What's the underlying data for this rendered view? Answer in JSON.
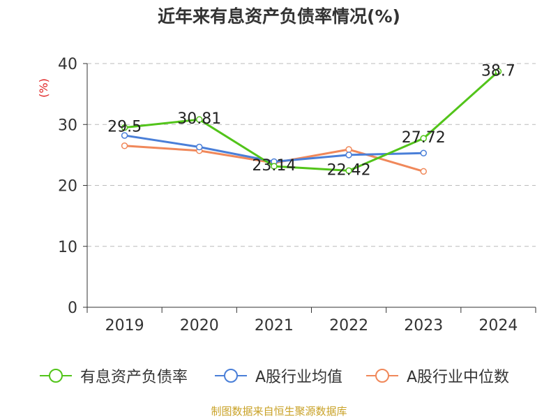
{
  "title": "近年来有息资产负债率情况(%)",
  "source": "制图数据来自恒生聚源数据库",
  "chart_data": {
    "type": "line",
    "title": "近年来有息资产负债率情况(%)",
    "ylabel": "(%)",
    "xlabel": "",
    "categories": [
      "2019",
      "2020",
      "2021",
      "2022",
      "2023",
      "2024"
    ],
    "ylim": [
      0,
      40
    ],
    "yticks": [
      0,
      10,
      20,
      30,
      40
    ],
    "grid": true,
    "legend_position": "bottom",
    "series": [
      {
        "name": "有息资产负债率",
        "color": "#52c41a",
        "values": [
          29.5,
          30.81,
          23.14,
          22.42,
          27.72,
          38.7
        ],
        "labels": [
          "29.5",
          "30.81",
          "23.14",
          "22.42",
          "27.72",
          "38.7"
        ]
      },
      {
        "name": "A股行业均值",
        "color": "#4a7fd8",
        "values": [
          28.2,
          26.3,
          23.9,
          25.0,
          25.3,
          null
        ]
      },
      {
        "name": "A股行业中位数",
        "color": "#f0885a",
        "values": [
          26.5,
          25.7,
          23.7,
          25.9,
          22.3,
          null
        ]
      }
    ]
  }
}
